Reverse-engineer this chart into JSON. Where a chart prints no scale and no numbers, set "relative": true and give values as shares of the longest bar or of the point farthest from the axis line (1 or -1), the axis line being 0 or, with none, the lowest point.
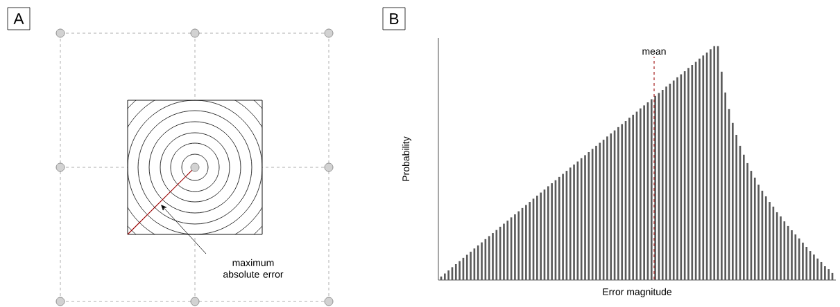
{
  "chart_data": [
    {
      "type": "other",
      "title": "A",
      "annotations": [
        "maximum absolute error"
      ]
    },
    {
      "type": "bar",
      "title": "B",
      "xlabel": "Error magnitude",
      "ylabel": "Probability",
      "relative": true,
      "color": "#5a5a5a",
      "categories": [
        null,
        null,
        null,
        null,
        null,
        null,
        null,
        null,
        null,
        null,
        null,
        null,
        null,
        null,
        null,
        null,
        null,
        null,
        null,
        null,
        null,
        null,
        null,
        null,
        null,
        null,
        null,
        null,
        null,
        null,
        null,
        null,
        null,
        null,
        null,
        null,
        null,
        null,
        null,
        null,
        null,
        null,
        null,
        null,
        null,
        null,
        null,
        null,
        null,
        null,
        null,
        null,
        null,
        null,
        null,
        null,
        null,
        null,
        null,
        null,
        null,
        null,
        null,
        null,
        null,
        null,
        null,
        null,
        null,
        null,
        null,
        null,
        null,
        null,
        null,
        null,
        null,
        null,
        null,
        null,
        null,
        null,
        null,
        null,
        null,
        null,
        null,
        null,
        null,
        null,
        null,
        null,
        null,
        null,
        null,
        null,
        null,
        null,
        null,
        null,
        null,
        null,
        null,
        null,
        null,
        null,
        null
      ],
      "values": [
        0.015,
        0.028,
        0.041,
        0.055,
        0.068,
        0.081,
        0.095,
        0.108,
        0.121,
        0.135,
        0.148,
        0.161,
        0.175,
        0.188,
        0.201,
        0.214,
        0.228,
        0.241,
        0.254,
        0.268,
        0.281,
        0.294,
        0.308,
        0.321,
        0.334,
        0.348,
        0.361,
        0.374,
        0.387,
        0.401,
        0.414,
        0.427,
        0.441,
        0.454,
        0.467,
        0.481,
        0.494,
        0.507,
        0.521,
        0.534,
        0.547,
        0.561,
        0.574,
        0.587,
        0.6,
        0.614,
        0.627,
        0.64,
        0.654,
        0.667,
        0.68,
        0.694,
        0.707,
        0.72,
        0.734,
        0.747,
        0.76,
        0.773,
        0.787,
        0.8,
        0.813,
        0.827,
        0.84,
        0.853,
        0.867,
        0.88,
        0.893,
        0.907,
        0.92,
        0.933,
        0.947,
        0.96,
        0.973,
        0.987,
        1,
        1,
        0.891,
        0.802,
        0.731,
        0.672,
        0.621,
        0.574,
        0.536,
        0.5,
        0.467,
        0.438,
        0.408,
        0.382,
        0.358,
        0.334,
        0.314,
        0.29,
        0.272,
        0.251,
        0.231,
        0.213,
        0.195,
        0.178,
        0.16,
        0.142,
        0.124,
        0.109,
        0.092,
        0.077,
        0.059,
        0.047,
        0.03
      ],
      "annotations": [
        "mean"
      ]
    }
  ]
}
